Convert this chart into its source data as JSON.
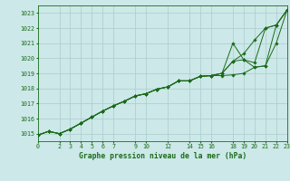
{
  "title": "Graphe pression niveau de la mer (hPa)",
  "background_color": "#cce8e8",
  "grid_color": "#aacccc",
  "line_color": "#1a6b1a",
  "xlim": [
    0,
    23
  ],
  "ylim": [
    1014.5,
    1023.5
  ],
  "yticks": [
    1015,
    1016,
    1017,
    1018,
    1019,
    1020,
    1021,
    1022,
    1023
  ],
  "xticks": [
    0,
    2,
    3,
    4,
    5,
    6,
    7,
    9,
    10,
    12,
    14,
    15,
    16,
    18,
    19,
    20,
    21,
    22,
    23
  ],
  "series1": [
    1014.9,
    1015.15,
    1015.0,
    1015.3,
    1015.7,
    1016.1,
    1016.5,
    1016.85,
    1017.15,
    1017.5,
    1017.65,
    1017.95,
    1018.1,
    1018.5,
    1018.5,
    1018.8,
    1018.85,
    1018.85,
    1018.9,
    1019.0,
    1019.4,
    1019.5,
    1021.0,
    1023.2
  ],
  "series2": [
    1014.9,
    1015.15,
    1015.0,
    1015.3,
    1015.7,
    1016.1,
    1016.5,
    1016.85,
    1017.15,
    1017.5,
    1017.65,
    1017.95,
    1018.1,
    1018.5,
    1018.5,
    1018.8,
    1018.85,
    1019.0,
    1019.8,
    1020.3,
    1021.2,
    1022.0,
    1022.2,
    1023.2
  ],
  "series3": [
    1014.9,
    1015.15,
    1015.0,
    1015.3,
    1015.7,
    1016.1,
    1016.5,
    1016.85,
    1017.15,
    1017.5,
    1017.65,
    1017.95,
    1018.1,
    1018.5,
    1018.5,
    1018.8,
    1018.85,
    1019.0,
    1021.0,
    1019.9,
    1019.7,
    1022.0,
    1022.2,
    1023.2
  ],
  "series4": [
    1014.9,
    1015.15,
    1015.0,
    1015.3,
    1015.7,
    1016.1,
    1016.5,
    1016.85,
    1017.15,
    1017.5,
    1017.65,
    1017.95,
    1018.1,
    1018.5,
    1018.5,
    1018.8,
    1018.85,
    1019.0,
    1019.8,
    1019.9,
    1019.4,
    1019.5,
    1022.2,
    1023.2
  ],
  "x_hours": [
    0,
    1,
    2,
    3,
    4,
    5,
    6,
    7,
    8,
    9,
    10,
    11,
    12,
    13,
    14,
    15,
    16,
    17,
    18,
    19,
    20,
    21,
    22,
    23
  ],
  "figwidth": 3.2,
  "figheight": 2.0,
  "dpi": 100
}
